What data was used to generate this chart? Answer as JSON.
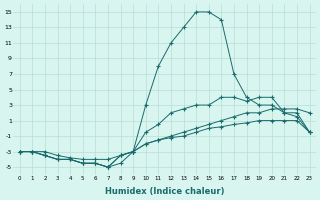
{
  "xlabel": "Humidex (Indice chaleur)",
  "x": [
    0,
    1,
    2,
    3,
    4,
    5,
    6,
    7,
    8,
    9,
    10,
    11,
    12,
    13,
    14,
    15,
    16,
    17,
    18,
    19,
    20,
    21,
    22,
    23
  ],
  "line1": [
    -3,
    -3,
    -3.5,
    -4,
    -4,
    -4.5,
    -4.5,
    -5,
    -4.5,
    -3,
    3,
    8,
    11,
    13,
    15,
    15,
    14,
    7,
    4,
    3,
    3,
    2,
    1.5,
    -0.5
  ],
  "line2": [
    -3,
    -3,
    -3.5,
    -4,
    -4,
    -4.5,
    -4.5,
    -5,
    -3.5,
    -3,
    -0.5,
    0.5,
    2,
    2.5,
    3,
    3,
    4,
    4,
    3.5,
    4,
    4,
    2,
    2,
    -0.5
  ],
  "line3": [
    -3,
    -3,
    -3,
    -3.5,
    -3.8,
    -4,
    -4,
    -4,
    -3.5,
    -3,
    -2,
    -1.5,
    -1,
    -0.5,
    0,
    0.5,
    1,
    1.5,
    2,
    2,
    2.5,
    2.5,
    2.5,
    2
  ],
  "line4": [
    -3,
    -3,
    -3.5,
    -4,
    -4,
    -4.5,
    -4.5,
    -5,
    -3.5,
    -3,
    -2,
    -1.5,
    -1.2,
    -1,
    -0.5,
    0,
    0.2,
    0.5,
    0.7,
    1,
    1,
    1,
    1,
    -0.5
  ],
  "color": "#1a6b6b",
  "bg_color": "#d8f5f0",
  "grid_color": "#b8ddd8",
  "ylim": [
    -6,
    16
  ],
  "yticks": [
    -5,
    -3,
    -1,
    1,
    3,
    5,
    7,
    9,
    11,
    13,
    15
  ],
  "xlim": [
    -0.5,
    23.5
  ]
}
